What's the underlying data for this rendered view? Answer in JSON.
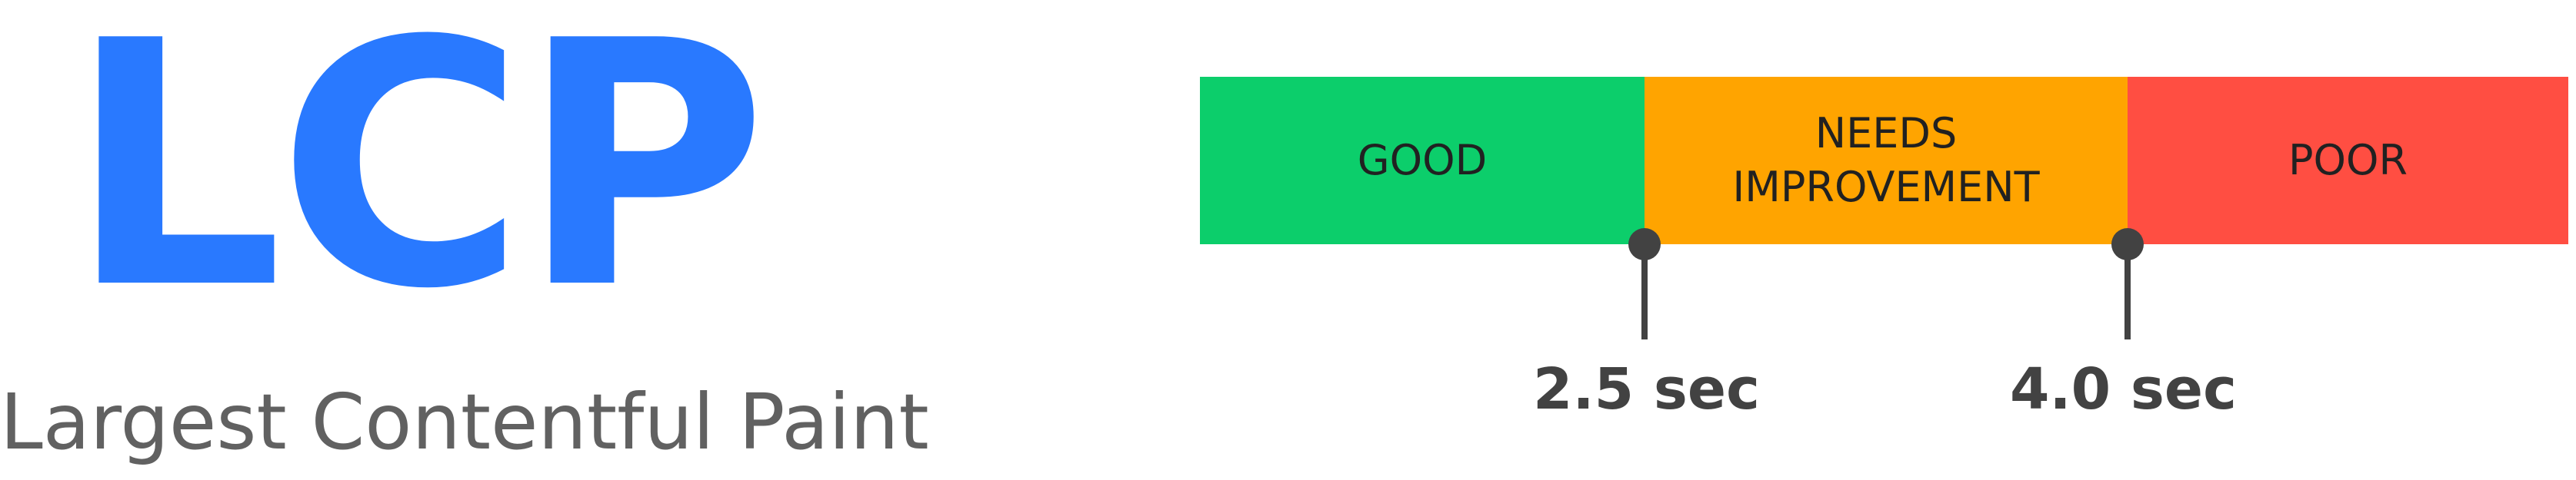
{
  "metric": {
    "acronym": "LCP",
    "name": "Largest Contentful Paint"
  },
  "scale": {
    "segments": [
      {
        "label": "GOOD",
        "color": "#0cce6b"
      },
      {
        "label": "NEEDS\nIMPROVEMENT",
        "color": "#ffa400"
      },
      {
        "label": "POOR",
        "color": "#ff4e42"
      }
    ],
    "thresholds": [
      {
        "label": "2.5 sec",
        "value": 2.5
      },
      {
        "label": "4.0 sec",
        "value": 4.0
      }
    ]
  },
  "colors": {
    "acronym": "#2979ff",
    "name": "#616161",
    "segment_text": "#212121",
    "marker": "#424242",
    "threshold_text": "#424242"
  }
}
